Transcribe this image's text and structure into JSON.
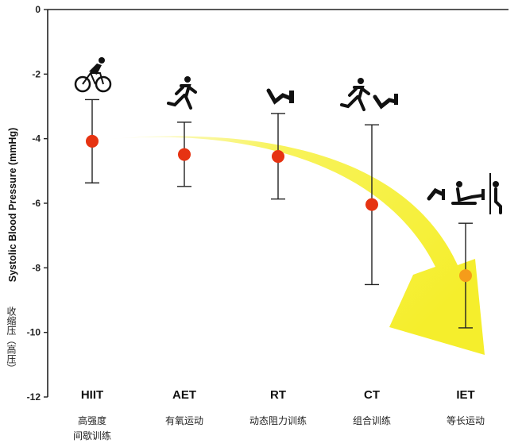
{
  "chart_data": {
    "type": "scatter",
    "ylabel": "Systolic Blood Pressure (mmHg)",
    "ylabel_cn": "收缩压（高压）",
    "ylim": [
      -12,
      0
    ],
    "yticks": [
      "0",
      "-2",
      "-4",
      "-6",
      "-8",
      "-10",
      "-12"
    ],
    "ytick_values": [
      0,
      -2,
      -4,
      -6,
      -8,
      -10,
      -12
    ],
    "grid": false,
    "categories": [
      {
        "label": "HIIT",
        "sub": [
          "高强度",
          "间歇训练"
        ],
        "icon": "cyclist-icon"
      },
      {
        "label": "AET",
        "sub": [
          "有氧运动"
        ],
        "icon": "runner-icon"
      },
      {
        "label": "RT",
        "sub": [
          "动态阻力训练"
        ],
        "icon": "leg-press-icon"
      },
      {
        "label": "CT",
        "sub": [
          "组合训练"
        ],
        "icon": "runner-and-leg-press-icon"
      },
      {
        "label": "IET",
        "sub": [
          "等长运动"
        ],
        "icon": "isometric-exercise-icon"
      }
    ],
    "series": [
      {
        "values": [
          -4.08,
          -4.49,
          -4.55,
          -6.04,
          -8.24
        ],
        "ci_upper": [
          -2.79,
          -3.49,
          -3.22,
          -3.57,
          -6.62
        ],
        "ci_lower": [
          -5.37,
          -5.48,
          -5.87,
          -8.52,
          -9.86
        ],
        "marker_colors": [
          "#e63312",
          "#e63312",
          "#e63312",
          "#e63312",
          "#f59c1a"
        ]
      }
    ],
    "colors": {
      "arrow": "#f7f23f",
      "axis": "#222222",
      "errorbar": "#222222"
    }
  }
}
